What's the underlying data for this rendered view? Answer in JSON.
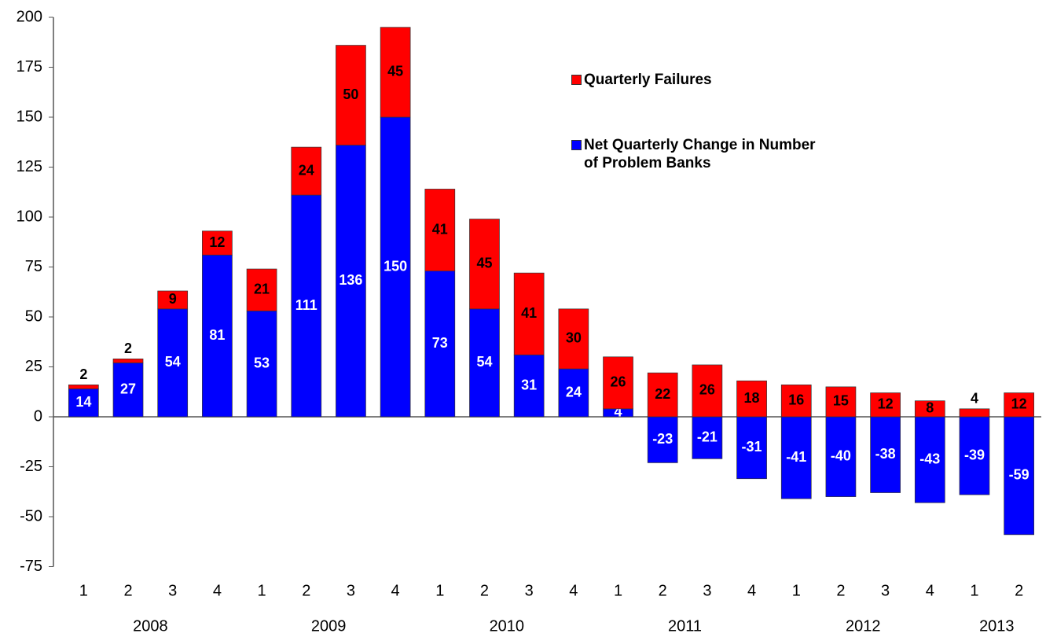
{
  "chart_data": {
    "type": "stacked_bar",
    "categories": [
      "1",
      "2",
      "3",
      "4",
      "1",
      "2",
      "3",
      "4",
      "1",
      "2",
      "3",
      "4",
      "1",
      "2",
      "3",
      "4",
      "1",
      "2",
      "3",
      "4",
      "1",
      "2"
    ],
    "years": [
      "2008",
      "2009",
      "2010",
      "2011",
      "2012",
      "2013"
    ],
    "series": [
      {
        "name": "Net Quarterly Change in Number of Problem Banks",
        "color": "#0000ff",
        "label_color": "#ffffff",
        "values": [
          14,
          27,
          54,
          81,
          53,
          111,
          136,
          150,
          73,
          54,
          31,
          24,
          4,
          -23,
          -21,
          -31,
          -41,
          -40,
          -38,
          -43,
          -39,
          -59
        ]
      },
      {
        "name": "Quarterly Failures",
        "color": "#ff0000",
        "label_color": "#000000",
        "values": [
          2,
          2,
          9,
          12,
          21,
          24,
          50,
          45,
          41,
          45,
          41,
          30,
          26,
          22,
          26,
          18,
          16,
          15,
          12,
          8,
          4,
          12
        ]
      }
    ],
    "ylim": [
      -75,
      200
    ],
    "yticks": [
      -75,
      -50,
      -25,
      0,
      25,
      50,
      75,
      100,
      125,
      150,
      175,
      200
    ]
  }
}
